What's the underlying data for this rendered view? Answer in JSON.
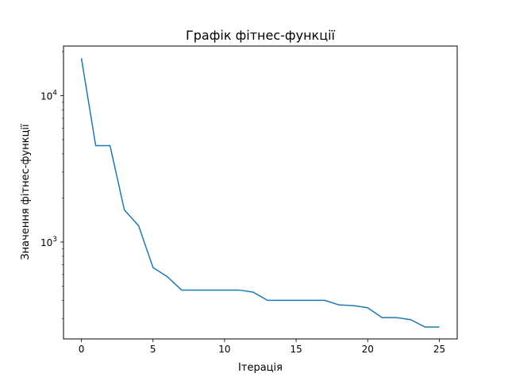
{
  "chart_data": {
    "type": "line",
    "title": "Графік фітнес-функції",
    "xlabel": "Ітерація",
    "ylabel": "Значення фітнес-функції",
    "yscale": "log",
    "xlim": [
      -1.25,
      26.25
    ],
    "ylim": [
      218,
      21800
    ],
    "xticks": [
      0,
      5,
      10,
      15,
      20,
      25
    ],
    "xtick_labels": [
      "0",
      "5",
      "10",
      "15",
      "20",
      "25"
    ],
    "yticks_major": [
      1000,
      10000
    ],
    "ytick_labels": [
      {
        "base": "10",
        "exp": "3"
      },
      {
        "base": "10",
        "exp": "4"
      }
    ],
    "grid": false,
    "legend": "none",
    "series": [
      {
        "color": "#1f77b4",
        "x": [
          0,
          1,
          2,
          3,
          4,
          5,
          6,
          7,
          8,
          9,
          10,
          11,
          12,
          13,
          14,
          15,
          16,
          17,
          18,
          19,
          20,
          21,
          22,
          23,
          24,
          25
        ],
        "y": [
          18000,
          4550,
          4550,
          1660,
          1290,
          670,
          580,
          470,
          470,
          470,
          470,
          470,
          455,
          400,
          400,
          400,
          400,
          400,
          372,
          368,
          356,
          305,
          305,
          295,
          263,
          263
        ]
      }
    ]
  }
}
